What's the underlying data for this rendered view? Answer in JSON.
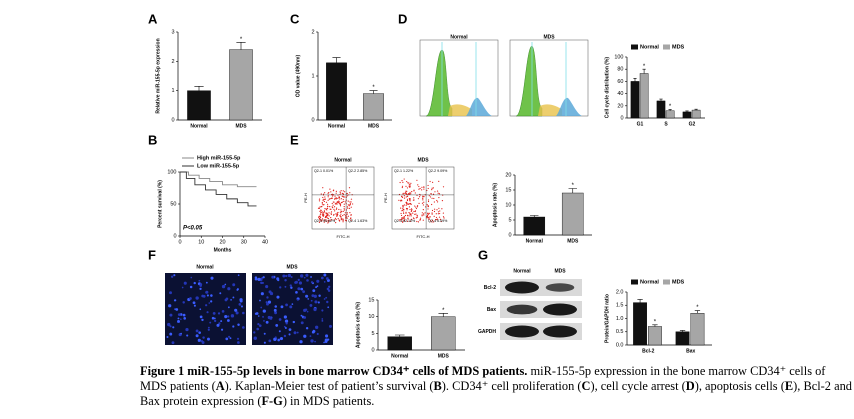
{
  "chart_data": [
    {
      "type": "bar",
      "label": "A",
      "ylabel": "Relative miR-155-5p expression",
      "categories": [
        "Normal",
        "MDS"
      ],
      "values": [
        1.0,
        2.4
      ],
      "errors": [
        0.15,
        0.25
      ],
      "colors": [
        "#111111",
        "#a6a6a6"
      ],
      "significance": [
        null,
        "*"
      ],
      "ylim": [
        0,
        3
      ],
      "yticks": [
        0,
        1,
        2,
        3
      ]
    },
    {
      "type": "bar",
      "label": "C",
      "ylabel": "OD value (490nm)",
      "categories": [
        "Normal",
        "MDS"
      ],
      "values": [
        1.3,
        0.6
      ],
      "errors": [
        0.12,
        0.07
      ],
      "colors": [
        "#111111",
        "#a6a6a6"
      ],
      "significance": [
        null,
        "*"
      ],
      "ylim": [
        0,
        2
      ],
      "yticks": [
        0,
        1,
        2
      ]
    },
    {
      "type": "bar",
      "label": "D",
      "ylabel": "Cell cycle distribution (%)",
      "categories": [
        "G1",
        "S",
        "G2"
      ],
      "histogram_titles": [
        "Normal",
        "MDS"
      ],
      "series": [
        {
          "name": "Normal",
          "color": "#111111",
          "values": [
            60,
            28,
            10
          ],
          "errors": [
            5,
            3,
            1.5
          ],
          "significance": [
            null,
            null,
            null
          ]
        },
        {
          "name": "MDS",
          "color": "#a6a6a6",
          "values": [
            73,
            12,
            13
          ],
          "errors": [
            7,
            2,
            1.5
          ],
          "significance": [
            "*",
            "*",
            null
          ]
        }
      ],
      "ylim": [
        0,
        100
      ],
      "yticks": [
        0,
        20,
        40,
        60,
        80,
        100
      ]
    },
    {
      "type": "line",
      "label": "B",
      "xlabel": "Months",
      "ylabel": "Percent survival (%)",
      "annotation": "P<0.05",
      "series": [
        {
          "name": "High miR-155-5p",
          "color": "#888888",
          "x": [
            0,
            4,
            4,
            9,
            9,
            14,
            14,
            20,
            20,
            27,
            27,
            36
          ],
          "values": [
            100,
            100,
            95,
            95,
            90,
            90,
            85,
            85,
            80,
            80,
            77,
            77
          ]
        },
        {
          "name": "Low miR-155-5p",
          "color": "#333333",
          "x": [
            0,
            3,
            3,
            7,
            7,
            12,
            12,
            17,
            17,
            22,
            22,
            27,
            27,
            32,
            32,
            36
          ],
          "values": [
            100,
            100,
            90,
            90,
            80,
            80,
            72,
            72,
            65,
            65,
            58,
            58,
            52,
            52,
            47,
            47
          ]
        }
      ],
      "xlim": [
        0,
        40
      ],
      "xticks": [
        0,
        10,
        20,
        30,
        40
      ],
      "ylim": [
        0,
        100
      ],
      "yticks": [
        0,
        50,
        100
      ]
    },
    {
      "type": "bar",
      "label": "E",
      "ylabel": "Apoptosis rate (%)",
      "categories": [
        "Normal",
        "MDS"
      ],
      "values": [
        6,
        14
      ],
      "errors": [
        0.5,
        1.5
      ],
      "colors": [
        "#111111",
        "#a6a6a6"
      ],
      "significance": [
        null,
        "*"
      ],
      "ylim": [
        0,
        20
      ],
      "yticks": [
        0,
        5,
        10,
        15,
        20
      ],
      "flow_titles": [
        "Normal",
        "MDS"
      ],
      "flow_xlabel": "FITC-H",
      "flow_ylabel": "PE-H",
      "quadrants": [
        [
          "Q2-1 0.01%",
          "Q2-2 2.85%",
          "Q2-3 94.62%",
          "Q2-4 1.63%"
        ],
        [
          "Q2-1 1.22%",
          "Q2-2 9.09%",
          "Q2-3 82.10%",
          "Q2-4 6.09%"
        ]
      ]
    },
    {
      "type": "bar",
      "label": "F",
      "ylabel": "Apoptosis cells (%)",
      "categories": [
        "Normal",
        "MDS"
      ],
      "values": [
        4,
        10
      ],
      "errors": [
        0.5,
        1
      ],
      "colors": [
        "#111111",
        "#a6a6a6"
      ],
      "significance": [
        null,
        "*"
      ],
      "ylim": [
        0,
        15
      ],
      "yticks": [
        0,
        5,
        10,
        15
      ],
      "image_titles": [
        "Normal",
        "MDS"
      ]
    },
    {
      "type": "bar",
      "label": "G",
      "ylabel": "Protein/GAPDH ratio",
      "categories": [
        "Bcl-2",
        "Bax"
      ],
      "blot_rows": [
        "Bcl-2",
        "Bax",
        "GAPDH"
      ],
      "blot_columns": [
        "Normal",
        "MDS"
      ],
      "series": [
        {
          "name": "Normal",
          "color": "#111111",
          "values": [
            1.6,
            0.5
          ],
          "errors": [
            0.12,
            0.05
          ],
          "significance": [
            null,
            null
          ]
        },
        {
          "name": "MDS",
          "color": "#a6a6a6",
          "values": [
            0.7,
            1.2
          ],
          "errors": [
            0.06,
            0.1
          ],
          "significance": [
            "*",
            "*"
          ]
        }
      ],
      "ylim": [
        0,
        2
      ],
      "yticks": [
        {
          "value": 0,
          "label": "0.0"
        },
        0.5,
        {
          "value": 1,
          "label": "1.0"
        },
        1.5,
        {
          "value": 2,
          "label": "2.0"
        }
      ]
    }
  ],
  "caption": {
    "title": "Figure 1 miR-155-5p levels in bone marrow CD34⁺ cells of MDS patients.",
    "body": [
      " miR-155-5p expression in the bone marrow CD34⁺ cells of MDS patients (",
      "A",
      "). Kaplan-Meier test of patient’s survival (",
      "B",
      "). CD34⁺ cell proliferation (",
      "C",
      "), cell cycle arrest (",
      "D",
      "), apoptosis cells (",
      "E",
      "), Bcl-2 and Bax protein expression (",
      "F-G",
      ") in MDS patients."
    ]
  }
}
